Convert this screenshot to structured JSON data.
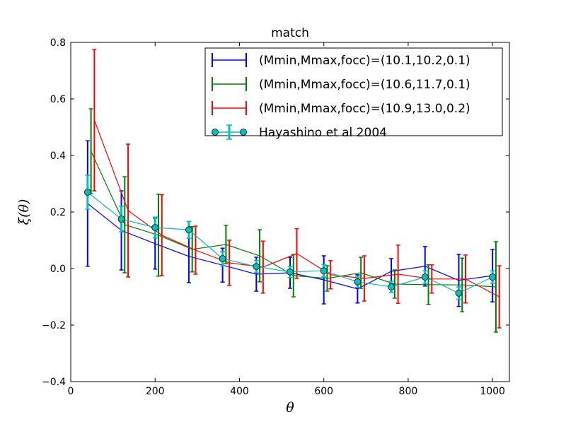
{
  "chart_data": {
    "type": "line",
    "title": "match",
    "xlabel": "θ",
    "ylabel": "ξ(θ)",
    "xlim": [
      0,
      1040
    ],
    "ylim": [
      -0.4,
      0.8
    ],
    "xticks": [
      0,
      200,
      400,
      600,
      800,
      1000
    ],
    "yticks": [
      -0.4,
      -0.2,
      0.0,
      0.2,
      0.4,
      0.6,
      0.8
    ],
    "xtick_labels": [
      "0",
      "200",
      "400",
      "600",
      "800",
      "1000"
    ],
    "ytick_labels": [
      "−0.4",
      "−0.2",
      "0.0",
      "0.2",
      "0.4",
      "0.6",
      "0.8"
    ],
    "grid": false,
    "legend_position": "top-right",
    "series": [
      {
        "name": "(Mmin,Mmax,focc)=(10.1,10.2,0.1)",
        "color": "#0000ff",
        "marker": "none",
        "x": [
          40,
          120,
          200,
          280,
          360,
          440,
          520,
          600,
          680,
          760,
          840,
          920,
          1000
        ],
        "y": [
          0.23,
          0.135,
          0.088,
          0.043,
          0.012,
          -0.02,
          -0.015,
          -0.04,
          -0.072,
          -0.01,
          0.008,
          -0.042,
          -0.025
        ],
        "yerr": [
          0.222,
          0.14,
          0.09,
          0.093,
          0.06,
          0.06,
          0.055,
          0.085,
          0.05,
          0.045,
          0.07,
          0.092,
          0.093
        ]
      },
      {
        "name": "(Mmin,Mmax,focc)=(10.6,11.7,0.1)",
        "color": "#008000",
        "marker": "none",
        "x": [
          48,
          128,
          208,
          288,
          368,
          448,
          528,
          608,
          688,
          768,
          848,
          928,
          1008
        ],
        "y": [
          0.415,
          0.155,
          0.118,
          0.068,
          0.085,
          0.045,
          -0.025,
          -0.035,
          -0.015,
          -0.055,
          -0.057,
          -0.058,
          -0.065
        ],
        "yerr": [
          0.15,
          0.17,
          0.145,
          0.08,
          0.068,
          0.092,
          0.075,
          0.045,
          0.055,
          0.05,
          0.07,
          0.095,
          0.16
        ]
      },
      {
        "name": "(Mmin,Mmax,focc)=(10.9,13.0,0.2)",
        "color": "#ff0000",
        "marker": "none",
        "x": [
          56,
          136,
          216,
          296,
          376,
          456,
          536,
          616,
          696,
          776,
          856,
          936,
          1016
        ],
        "y": [
          0.525,
          0.205,
          0.118,
          0.065,
          0.02,
          0.005,
          0.053,
          -0.022,
          -0.035,
          -0.02,
          -0.037,
          -0.037,
          -0.1
        ],
        "yerr": [
          0.25,
          0.235,
          0.143,
          0.085,
          0.08,
          0.092,
          0.088,
          0.05,
          0.08,
          0.103,
          0.05,
          0.085,
          0.11
        ]
      },
      {
        "name": "Hayashino et al 2004",
        "color": "#00bfbf",
        "marker": "circle",
        "x": [
          40,
          120,
          200,
          280,
          360,
          440,
          520,
          600,
          680,
          760,
          840,
          920,
          1000
        ],
        "y": [
          0.27,
          0.175,
          0.145,
          0.137,
          0.035,
          0.007,
          -0.012,
          -0.008,
          -0.047,
          -0.065,
          -0.03,
          -0.087,
          -0.03
        ],
        "yerr": [
          0.06,
          0.045,
          0.037,
          0.03,
          0.025,
          0.022,
          0.02,
          0.022,
          0.02,
          0.02,
          0.022,
          0.022,
          0.022
        ]
      }
    ]
  }
}
